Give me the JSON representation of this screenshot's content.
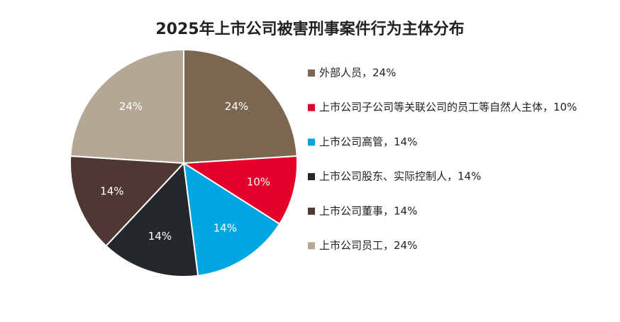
{
  "chart_data": {
    "type": "pie",
    "title": "2025年上市公司被害刑事案件行为主体分布",
    "categories": [
      "外部人员，24%",
      "上市公司子公司等关联公司的员工等自然人主体，10%",
      "上市公司高管，14%",
      "上市公司股东、实际控制人，14%",
      "上市公司董事，14%",
      "上市公司员工，24%"
    ],
    "values": [
      24,
      10,
      14,
      14,
      14,
      24
    ],
    "value_labels": [
      "24%",
      "10%",
      "14%",
      "14%",
      "14%",
      "24%"
    ],
    "colors": [
      "#7b6750",
      "#e4002b",
      "#00a6e2",
      "#24272b",
      "#4f3833",
      "#b4a793"
    ],
    "legend": "right"
  }
}
